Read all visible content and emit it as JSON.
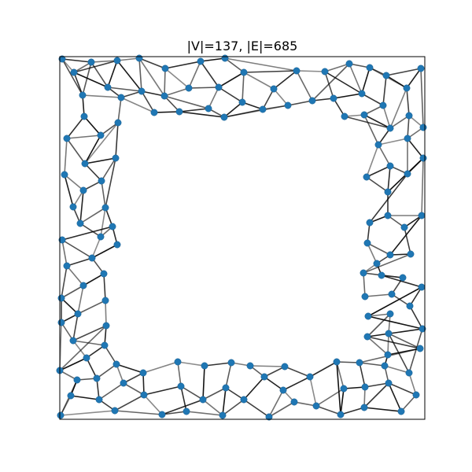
{
  "figure": {
    "title": "|V|=137, |E|=685",
    "node_color": "#1f77b4",
    "edge_color": "#000000"
  }
}
